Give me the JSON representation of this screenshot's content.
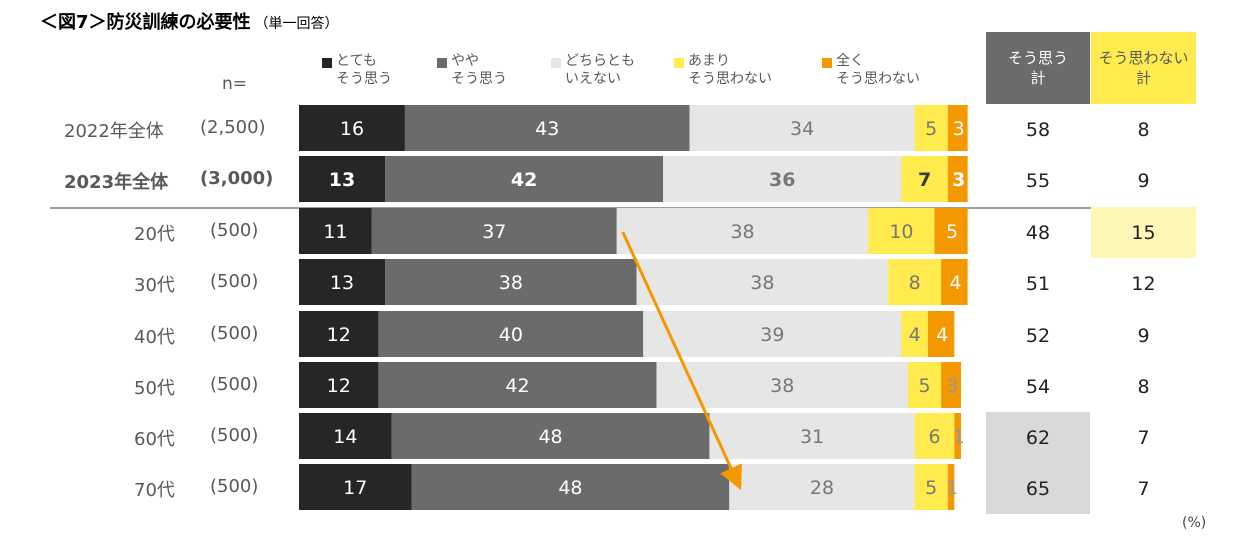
{
  "title": "＜図7＞防災訓練の必要性",
  "subtitle": "（単一回答）",
  "n_label": "n=",
  "unit_label": "(%)",
  "colors": {
    "very": "#262626",
    "somewhat": "#6b6b6b",
    "neither": "#e6e6e6",
    "not_much": "#ffeb4d",
    "not_at_all": "#f39800",
    "agree_header_bg": "#6b6b6b",
    "disagree_header_bg": "#ffeb4d",
    "gray_highlight": "#d9d9d9",
    "yellow_highlight": "#fff7b8",
    "arrow": "#f39800"
  },
  "summary_headers": {
    "agree_total": "そう思う\n計",
    "disagree_total": "そう思わない\n計"
  },
  "chart_data": {
    "type": "bar",
    "orientation": "horizontal-stacked-100",
    "categories": [
      "2022年全体",
      "2023年全体",
      "20代",
      "30代",
      "40代",
      "50代",
      "60代",
      "70代"
    ],
    "sample_sizes": [
      "(2,500)",
      "(3,000)",
      "(500)",
      "(500)",
      "(500)",
      "(500)",
      "(500)",
      "(500)"
    ],
    "bold_rows": [
      1
    ],
    "series": [
      {
        "name": "とても\nそう思う",
        "key": "very",
        "values": [
          16,
          13,
          11,
          13,
          12,
          12,
          14,
          17
        ]
      },
      {
        "name": "やや\nそう思う",
        "key": "somewhat",
        "values": [
          43,
          42,
          37,
          38,
          40,
          42,
          48,
          48
        ]
      },
      {
        "name": "どちらとも\nいえない",
        "key": "neither",
        "values": [
          34,
          36,
          38,
          38,
          39,
          38,
          31,
          28
        ]
      },
      {
        "name": "あまり\nそう思わない",
        "key": "not_much",
        "values": [
          5,
          7,
          10,
          8,
          4,
          5,
          6,
          5
        ]
      },
      {
        "name": "全く\nそう思わない",
        "key": "not_at_all",
        "values": [
          3,
          3,
          5,
          4,
          4,
          3,
          1,
          1
        ]
      }
    ],
    "agree_total": [
      58,
      55,
      48,
      51,
      52,
      54,
      62,
      65
    ],
    "disagree_total": [
      8,
      9,
      15,
      12,
      9,
      8,
      7,
      7
    ],
    "highlight_agree_rows": [
      6,
      7
    ],
    "highlight_disagree_rows": [
      2
    ],
    "arrow": {
      "from_row": 2,
      "to_row": 7,
      "description": "trend"
    },
    "xlim": [
      0,
      100
    ]
  }
}
